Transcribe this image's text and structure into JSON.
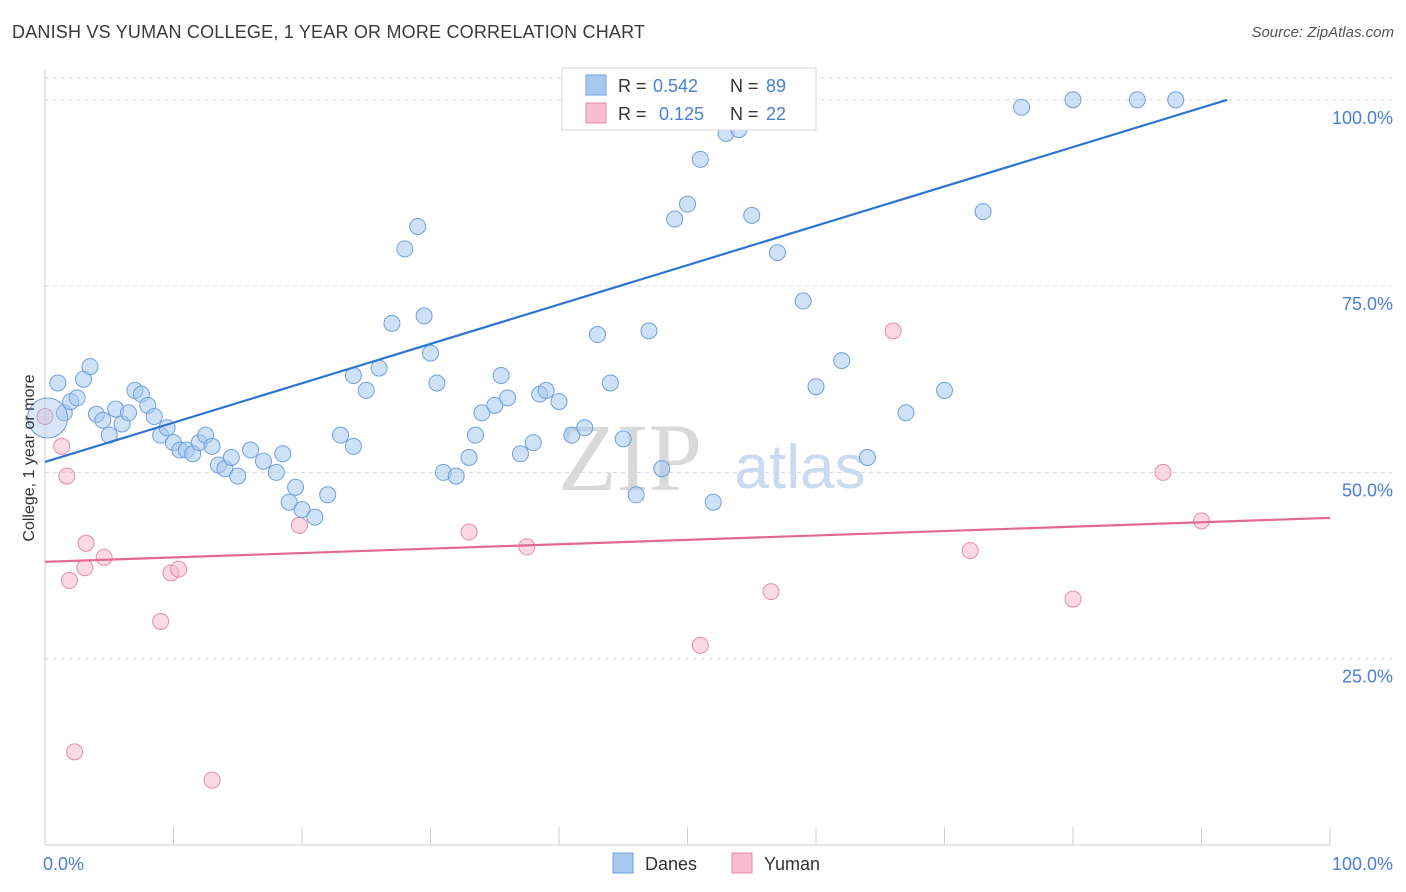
{
  "title": "DANISH VS YUMAN COLLEGE, 1 YEAR OR MORE CORRELATION CHART",
  "source": "Source: ZipAtlas.com",
  "watermark": {
    "part1": "ZIP",
    "part2": "atlas"
  },
  "colors": {
    "danes_fill": "#a8c8f0",
    "danes_stroke": "#6fa0dc",
    "danes_line": "#2f74d0",
    "yuman_fill": "#f7bcd0",
    "yuman_stroke": "#e98aa8",
    "yuman_line": "#e26a92",
    "tick_label": "#4a7fd4",
    "grid": "#d6d6d6"
  },
  "legend": {
    "rows": [
      {
        "r_label": "R =",
        "r_value": "0.542",
        "n_label": "N =",
        "n_value": "89"
      },
      {
        "r_label": "R =",
        "r_value": "0.125",
        "n_label": "N =",
        "n_value": "22"
      }
    ],
    "bottom": [
      "Danes",
      "Yuman"
    ]
  },
  "chart_data": {
    "type": "scatter",
    "title": "DANISH VS YUMAN COLLEGE, 1 YEAR OR MORE CORRELATION CHART",
    "xlabel": "",
    "ylabel": "College, 1 year or more",
    "xlim": [
      0,
      100
    ],
    "ylim": [
      0,
      104
    ],
    "x_tick_labels": [
      "0.0%",
      "100.0%"
    ],
    "y_ticks": [
      25,
      50,
      75,
      100
    ],
    "y_tick_labels": [
      "25.0%",
      "50.0%",
      "75.0%",
      "100.0%"
    ],
    "series": [
      {
        "name": "Danes",
        "r": 0.542,
        "n": 89,
        "trend": {
          "x0": 0,
          "y0": 51.4,
          "x1": 92,
          "y1": 100.0
        },
        "points": [
          [
            1.0,
            62.0
          ],
          [
            1.5,
            58.0
          ],
          [
            2.0,
            59.5
          ],
          [
            2.5,
            60.0
          ],
          [
            3.0,
            62.5
          ],
          [
            3.5,
            64.2
          ],
          [
            4.0,
            57.8
          ],
          [
            4.5,
            57.0
          ],
          [
            5.0,
            55.0
          ],
          [
            5.5,
            58.5
          ],
          [
            6.0,
            56.5
          ],
          [
            6.5,
            58.0
          ],
          [
            7.0,
            61.0
          ],
          [
            7.5,
            60.5
          ],
          [
            8.0,
            59.0
          ],
          [
            8.5,
            57.5
          ],
          [
            9.0,
            55.0
          ],
          [
            9.5,
            56.0
          ],
          [
            10.0,
            54.0
          ],
          [
            10.5,
            53.0
          ],
          [
            11.0,
            53.0
          ],
          [
            11.5,
            52.5
          ],
          [
            12.0,
            54.0
          ],
          [
            12.5,
            55.0
          ],
          [
            13.0,
            53.5
          ],
          [
            13.5,
            51.0
          ],
          [
            14.0,
            50.5
          ],
          [
            14.5,
            52.0
          ],
          [
            15.0,
            49.5
          ],
          [
            16.0,
            53.0
          ],
          [
            17.0,
            51.5
          ],
          [
            18.0,
            50.0
          ],
          [
            18.5,
            52.5
          ],
          [
            19.0,
            46.0
          ],
          [
            19.5,
            48.0
          ],
          [
            20.0,
            45.0
          ],
          [
            21.0,
            44.0
          ],
          [
            22.0,
            47.0
          ],
          [
            23.0,
            55.0
          ],
          [
            24.0,
            53.5
          ],
          [
            24.0,
            63.0
          ],
          [
            25.0,
            61.0
          ],
          [
            26.0,
            64.0
          ],
          [
            27.0,
            70.0
          ],
          [
            28.0,
            80.0
          ],
          [
            29.0,
            83.0
          ],
          [
            29.5,
            71.0
          ],
          [
            30.0,
            66.0
          ],
          [
            30.5,
            62.0
          ],
          [
            31.0,
            50.0
          ],
          [
            32.0,
            49.5
          ],
          [
            33.0,
            52.0
          ],
          [
            33.5,
            55.0
          ],
          [
            34.0,
            58.0
          ],
          [
            35.0,
            59.0
          ],
          [
            35.5,
            63.0
          ],
          [
            36.0,
            60.0
          ],
          [
            37.0,
            52.5
          ],
          [
            38.0,
            54.0
          ],
          [
            38.5,
            60.5
          ],
          [
            39.0,
            61.0
          ],
          [
            40.0,
            59.5
          ],
          [
            41.0,
            55.0
          ],
          [
            42.0,
            56.0
          ],
          [
            43.0,
            68.5
          ],
          [
            44.0,
            62.0
          ],
          [
            45.0,
            54.5
          ],
          [
            46.0,
            47.0
          ],
          [
            47.0,
            69.0
          ],
          [
            48.0,
            50.5
          ],
          [
            49.0,
            84.0
          ],
          [
            50.0,
            86.0
          ],
          [
            51.0,
            92.0
          ],
          [
            52.0,
            46.0
          ],
          [
            53.0,
            95.5
          ],
          [
            54.0,
            96.0
          ],
          [
            55.0,
            84.5
          ],
          [
            57.0,
            79.5
          ],
          [
            59.0,
            73.0
          ],
          [
            60.0,
            61.5
          ],
          [
            62.0,
            65.0
          ],
          [
            64.0,
            52.0
          ],
          [
            67.0,
            58.0
          ],
          [
            70.0,
            61.0
          ],
          [
            73.0,
            85.0
          ],
          [
            76.0,
            99.0
          ],
          [
            80.0,
            100.0
          ],
          [
            85.0,
            100.0
          ],
          [
            88.0,
            100.0
          ]
        ]
      },
      {
        "name": "Yuman",
        "r": 0.125,
        "n": 22,
        "trend": {
          "x0": 0,
          "y0": 38.0,
          "x1": 100,
          "y1": 43.9
        },
        "points": [
          [
            0.0,
            57.5
          ],
          [
            1.3,
            53.5
          ],
          [
            1.7,
            49.5
          ],
          [
            1.9,
            35.5
          ],
          [
            2.3,
            12.5
          ],
          [
            3.1,
            37.2
          ],
          [
            3.2,
            40.5
          ],
          [
            4.6,
            38.6
          ],
          [
            9.0,
            30.0
          ],
          [
            9.8,
            36.5
          ],
          [
            10.4,
            37.0
          ],
          [
            13.0,
            8.7
          ],
          [
            19.8,
            42.9
          ],
          [
            33.0,
            42.0
          ],
          [
            37.5,
            40.0
          ],
          [
            51.0,
            26.8
          ],
          [
            56.5,
            34.0
          ],
          [
            66.0,
            69.0
          ],
          [
            72.0,
            39.5
          ],
          [
            80.0,
            33.0
          ],
          [
            87.0,
            50.0
          ],
          [
            90.0,
            43.5
          ]
        ]
      }
    ]
  }
}
